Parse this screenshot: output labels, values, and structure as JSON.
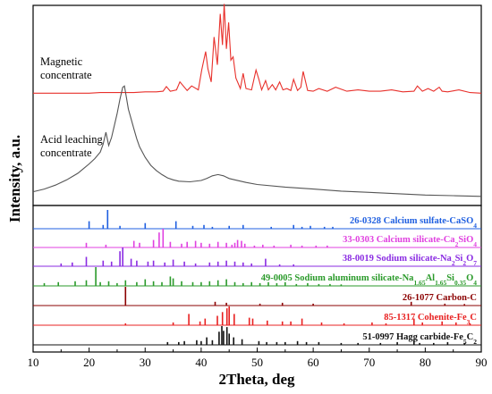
{
  "chart_data": {
    "type": "line",
    "xlabel": "2Theta, deg",
    "ylabel": "Intensity, a.u.",
    "xlim": [
      10,
      90
    ],
    "x_ticks": [
      10,
      20,
      30,
      40,
      50,
      60,
      70,
      80,
      90
    ],
    "grid": false,
    "series": [
      {
        "name": "Magnetic concentrate",
        "label_lines": [
          "Magnetic",
          "concentrate"
        ],
        "color": "#e8302b",
        "x": [
          10,
          12,
          14,
          16,
          18,
          20,
          22,
          24,
          26,
          28,
          30,
          32,
          33.2,
          33.8,
          34.5,
          35.6,
          36.2,
          37.5,
          38.3,
          39.5,
          40.1,
          40.8,
          41.2,
          41.8,
          42.3,
          42.9,
          43.4,
          43.8,
          44.1,
          44.5,
          44.9,
          45.3,
          45.7,
          46.2,
          47.0,
          47.5,
          48.0,
          49.0,
          49.8,
          50.3,
          50.8,
          51.5,
          52.0,
          52.7,
          53.3,
          54.0,
          54.6,
          55.3,
          56.0,
          56.5,
          57.2,
          57.8,
          58.2,
          59.0,
          60.0,
          61.0,
          62.5,
          64.0,
          66.0,
          68.0,
          70.0,
          72.0,
          74.0,
          76.0,
          78.0,
          78.6,
          79.5,
          80.5,
          81.5,
          82.5,
          83.0,
          84.0,
          86.0,
          88.0,
          90.0
        ],
        "y": [
          5,
          5,
          5,
          5,
          5,
          5,
          6,
          6,
          6,
          6,
          7,
          7,
          8,
          15,
          8,
          10,
          22,
          9,
          16,
          10,
          40,
          68,
          42,
          22,
          90,
          48,
          125,
          78,
          140,
          72,
          112,
          55,
          60,
          28,
          12,
          35,
          12,
          10,
          40,
          26,
          10,
          24,
          10,
          18,
          10,
          22,
          10,
          12,
          9,
          26,
          9,
          14,
          38,
          9,
          8,
          12,
          8,
          14,
          8,
          10,
          8,
          8,
          10,
          7,
          8,
          16,
          8,
          12,
          8,
          14,
          8,
          7,
          10,
          6,
          5
        ]
      },
      {
        "name": "Acid leaching concentrate",
        "label_lines": [
          "Acid leaching",
          "concentrate"
        ],
        "color": "#555555",
        "x": [
          10,
          11,
          12,
          13,
          14,
          15,
          16,
          17,
          18,
          19,
          20,
          21,
          22,
          22.5,
          23.0,
          23.5,
          24.0,
          24.5,
          25.0,
          25.5,
          26.0,
          26.3,
          26.6,
          27.0,
          27.5,
          28.0,
          28.5,
          29.0,
          30.0,
          31.0,
          32.0,
          33.0,
          34.0,
          35.0,
          36.0,
          38.0,
          40.0,
          41.0,
          42.0,
          43.0,
          44.0,
          45.0,
          46.0,
          48.0,
          50.0,
          55.0,
          60.0,
          65.0,
          70.0,
          75.0,
          80.0,
          85.0,
          90.0
        ],
        "y": [
          10,
          12,
          14,
          17,
          20,
          24,
          28,
          33,
          38,
          45,
          52,
          60,
          70,
          82,
          100,
          80,
          92,
          110,
          128,
          150,
          168,
          170,
          155,
          135,
          120,
          105,
          90,
          78,
          62,
          50,
          42,
          36,
          31,
          28,
          26,
          25,
          27,
          30,
          34,
          36,
          34,
          30,
          28,
          24,
          21,
          17,
          14,
          11,
          9,
          7,
          5,
          4,
          3
        ]
      }
    ],
    "reference_patterns": [
      {
        "label_plain": "26-0328 Calcium sulfate-CaSO",
        "label_sub": "4",
        "color": "#1f5fe0",
        "peaks": [
          [
            20.0,
            40
          ],
          [
            22.5,
            20
          ],
          [
            23.3,
            100
          ],
          [
            25.5,
            15
          ],
          [
            30.0,
            30
          ],
          [
            35.5,
            40
          ],
          [
            38.5,
            15
          ],
          [
            40.5,
            20
          ],
          [
            42.0,
            10
          ],
          [
            45.0,
            15
          ],
          [
            47.5,
            20
          ],
          [
            52.5,
            10
          ],
          [
            56.5,
            20
          ],
          [
            58.0,
            10
          ],
          [
            59.5,
            15
          ],
          [
            62.0,
            10
          ],
          [
            63.5,
            10
          ]
        ]
      },
      {
        "label_plain": "33-0303 Calcium silicate-Ca",
        "label_sub": "2",
        "label_plain2": "SiO",
        "label_sub2": "4",
        "color": "#e040e0",
        "peaks": [
          [
            19.5,
            25
          ],
          [
            23.0,
            15
          ],
          [
            28.0,
            35
          ],
          [
            29.0,
            25
          ],
          [
            31.5,
            40
          ],
          [
            32.5,
            80
          ],
          [
            33.2,
            100
          ],
          [
            34.5,
            30
          ],
          [
            36.5,
            20
          ],
          [
            37.5,
            30
          ],
          [
            39.0,
            35
          ],
          [
            40.0,
            25
          ],
          [
            41.5,
            20
          ],
          [
            43.0,
            30
          ],
          [
            44.5,
            25
          ],
          [
            45.5,
            15
          ],
          [
            46.0,
            25
          ],
          [
            46.5,
            40
          ],
          [
            47.2,
            35
          ],
          [
            47.8,
            20
          ],
          [
            49.5,
            10
          ],
          [
            51.0,
            15
          ],
          [
            53.0,
            10
          ],
          [
            56.0,
            15
          ],
          [
            58.0,
            10
          ],
          [
            60.5,
            10
          ],
          [
            62.5,
            10
          ]
        ]
      },
      {
        "label_plain": "38-0019 Sodium silicate-Na",
        "label_sub": "2",
        "label_plain2": "Si",
        "label_sub2": "2",
        "label_plain3": "O",
        "label_sub3": "7",
        "color": "#8a2be2",
        "peaks": [
          [
            15.0,
            15
          ],
          [
            17.0,
            20
          ],
          [
            19.5,
            50
          ],
          [
            22.5,
            30
          ],
          [
            24.0,
            25
          ],
          [
            25.5,
            80
          ],
          [
            26.0,
            100
          ],
          [
            27.5,
            40
          ],
          [
            28.5,
            30
          ],
          [
            30.5,
            25
          ],
          [
            31.5,
            30
          ],
          [
            33.5,
            20
          ],
          [
            35.0,
            35
          ],
          [
            37.0,
            25
          ],
          [
            39.0,
            15
          ],
          [
            41.5,
            20
          ],
          [
            43.0,
            25
          ],
          [
            44.5,
            30
          ],
          [
            46.0,
            25
          ],
          [
            47.5,
            20
          ],
          [
            49.0,
            15
          ],
          [
            51.5,
            40
          ],
          [
            54.0,
            10
          ],
          [
            56.5,
            10
          ]
        ]
      },
      {
        "label_plain": "49-0005 Sodium aluminum silicate-Na",
        "label_sub": "1.65",
        "label_plain2": "Al",
        "label_sub2": "1.65",
        "label_plain3": "Si",
        "label_sub3": "0.35",
        "label_plain4": "O",
        "label_sub4": "4",
        "color": "#2a9a2a",
        "peaks": [
          [
            12.0,
            15
          ],
          [
            14.5,
            20
          ],
          [
            17.5,
            25
          ],
          [
            19.5,
            30
          ],
          [
            21.2,
            100
          ],
          [
            22.0,
            20
          ],
          [
            23.5,
            25
          ],
          [
            25.0,
            15
          ],
          [
            26.5,
            30
          ],
          [
            28.5,
            20
          ],
          [
            30.0,
            35
          ],
          [
            31.5,
            25
          ],
          [
            33.0,
            20
          ],
          [
            34.5,
            50
          ],
          [
            35.0,
            40
          ],
          [
            36.5,
            25
          ],
          [
            38.5,
            20
          ],
          [
            40.0,
            20
          ],
          [
            41.5,
            25
          ],
          [
            43.0,
            30
          ],
          [
            44.5,
            35
          ],
          [
            46.0,
            20
          ],
          [
            47.5,
            15
          ],
          [
            49.0,
            20
          ],
          [
            50.5,
            15
          ],
          [
            52.0,
            20
          ],
          [
            53.5,
            15
          ],
          [
            55.0,
            20
          ],
          [
            57.0,
            10
          ],
          [
            59.0,
            15
          ],
          [
            61.0,
            10
          ],
          [
            63.0,
            10
          ],
          [
            65.0,
            8
          ]
        ]
      },
      {
        "label_plain": "26-1077 Carbon-C",
        "label_sub": "",
        "color": "#8b0000",
        "peaks": [
          [
            26.5,
            100
          ],
          [
            42.5,
            20
          ],
          [
            44.5,
            15
          ],
          [
            50.5,
            10
          ],
          [
            54.5,
            15
          ],
          [
            60.0,
            10
          ],
          [
            77.5,
            20
          ],
          [
            83.5,
            10
          ],
          [
            87.0,
            8
          ]
        ]
      },
      {
        "label_plain": "85-1317 Cohenite-Fe",
        "label_sub": "3",
        "label_plain2": "C",
        "label_sub2": "",
        "color": "#e82020",
        "peaks": [
          [
            26.5,
            10
          ],
          [
            35.0,
            15
          ],
          [
            37.8,
            60
          ],
          [
            39.8,
            20
          ],
          [
            40.7,
            35
          ],
          [
            42.9,
            50
          ],
          [
            43.8,
            70
          ],
          [
            44.6,
            90
          ],
          [
            45.0,
            100
          ],
          [
            45.9,
            60
          ],
          [
            48.6,
            40
          ],
          [
            49.2,
            35
          ],
          [
            51.8,
            25
          ],
          [
            54.5,
            20
          ],
          [
            56.0,
            20
          ],
          [
            58.0,
            35
          ],
          [
            61.5,
            15
          ],
          [
            65.5,
            10
          ],
          [
            70.5,
            15
          ],
          [
            73.0,
            10
          ],
          [
            78.0,
            35
          ],
          [
            79.5,
            15
          ],
          [
            83.0,
            20
          ],
          [
            85.5,
            15
          ],
          [
            88.0,
            10
          ]
        ]
      },
      {
        "label_plain": "51-0997 Hagg carbide-Fe",
        "label_sub": "5",
        "label_plain2": "C",
        "label_sub2": "2",
        "color": "#111111",
        "peaks": [
          [
            34.0,
            15
          ],
          [
            36.0,
            15
          ],
          [
            37.0,
            20
          ],
          [
            39.2,
            25
          ],
          [
            40.0,
            20
          ],
          [
            41.0,
            40
          ],
          [
            42.0,
            25
          ],
          [
            43.2,
            70
          ],
          [
            43.7,
            100
          ],
          [
            44.0,
            75
          ],
          [
            44.6,
            95
          ],
          [
            45.0,
            60
          ],
          [
            45.8,
            40
          ],
          [
            47.3,
            30
          ],
          [
            50.3,
            20
          ],
          [
            51.7,
            15
          ],
          [
            53.5,
            15
          ],
          [
            55.0,
            15
          ],
          [
            57.2,
            20
          ],
          [
            58.8,
            15
          ],
          [
            61.0,
            15
          ],
          [
            65.0,
            10
          ],
          [
            68.0,
            10
          ],
          [
            72.0,
            10
          ],
          [
            75.0,
            15
          ],
          [
            78.0,
            25
          ],
          [
            79.0,
            10
          ],
          [
            81.5,
            10
          ],
          [
            84.0,
            15
          ],
          [
            87.0,
            10
          ]
        ]
      }
    ]
  }
}
